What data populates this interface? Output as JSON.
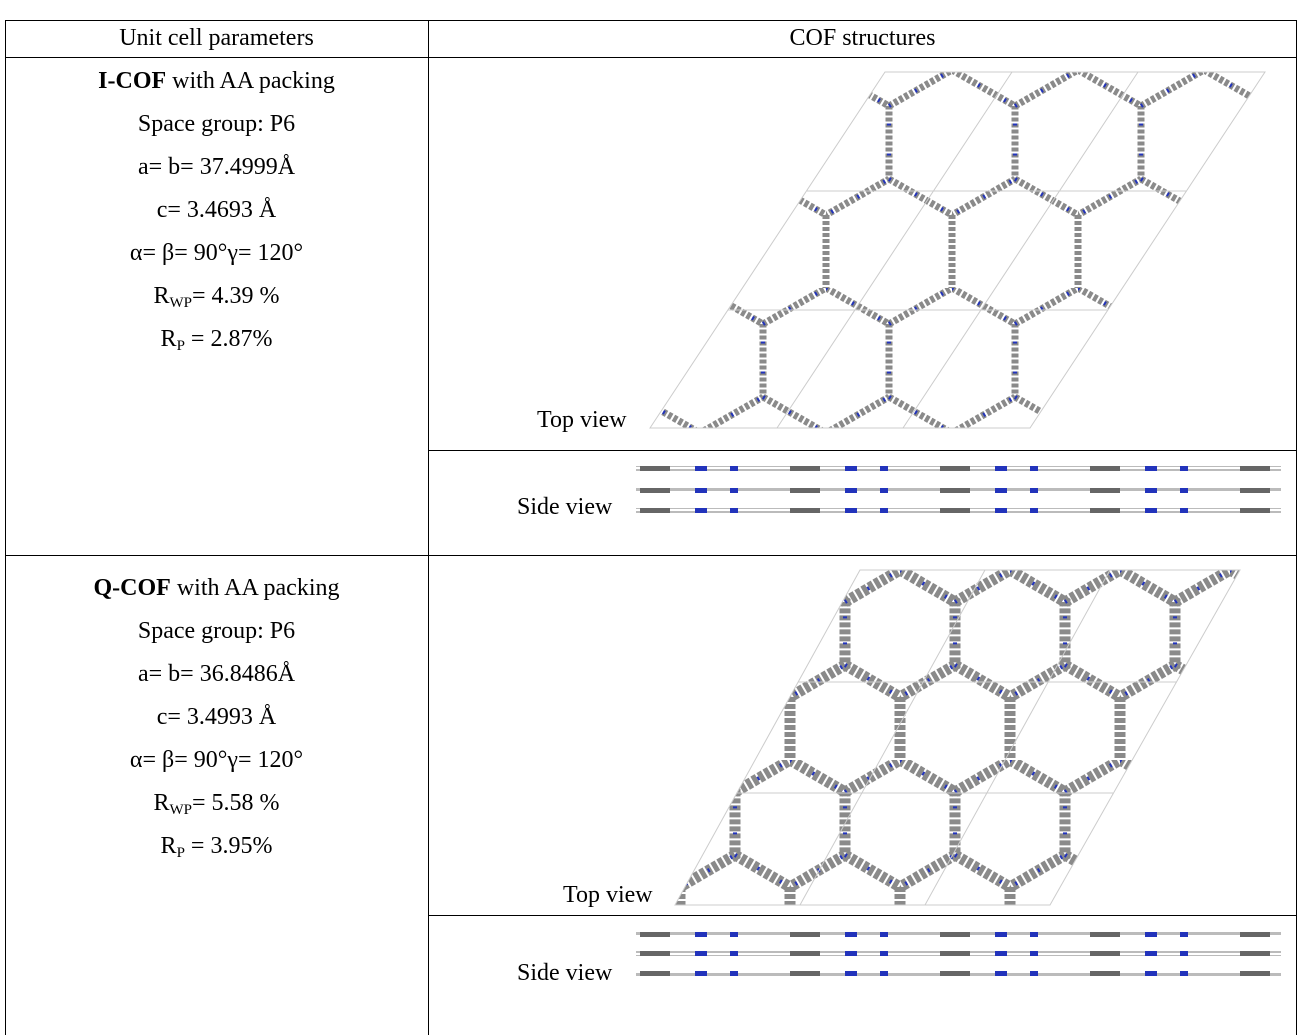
{
  "table": {
    "header": [
      "Unit cell parameters",
      "COF structures"
    ],
    "rows": [
      {
        "name": "I-COF",
        "name_suffix": " with AA packing",
        "space_group": "Space group: P6",
        "a_b": "a= b= 37.4999Å",
        "c": "c= 3.4693 Å",
        "angles": "α= β= 90°γ= 120°",
        "r_wp": {
          "symbol": "R",
          "subscript": "WP",
          "value": "= 4.39 %"
        },
        "r_p": {
          "symbol": "R",
          "subscript": "P",
          "value": " = 2.87%"
        },
        "top_view": "Top view",
        "side_view": "Side view"
      },
      {
        "name": "Q-COF",
        "name_suffix": " with AA packing",
        "space_group": "Space group: P6",
        "a_b": "a= b= 36.8486Å",
        "c": "c= 3.4993 Å",
        "angles": "α= β= 90°γ= 120°",
        "r_wp": {
          "symbol": "R",
          "subscript": "WP",
          "value": "= 5.58 %"
        },
        "r_p": {
          "symbol": "R",
          "subscript": "P",
          "value": " = 3.95%"
        },
        "top_view": "Top view",
        "side_view": "Side view"
      }
    ]
  }
}
